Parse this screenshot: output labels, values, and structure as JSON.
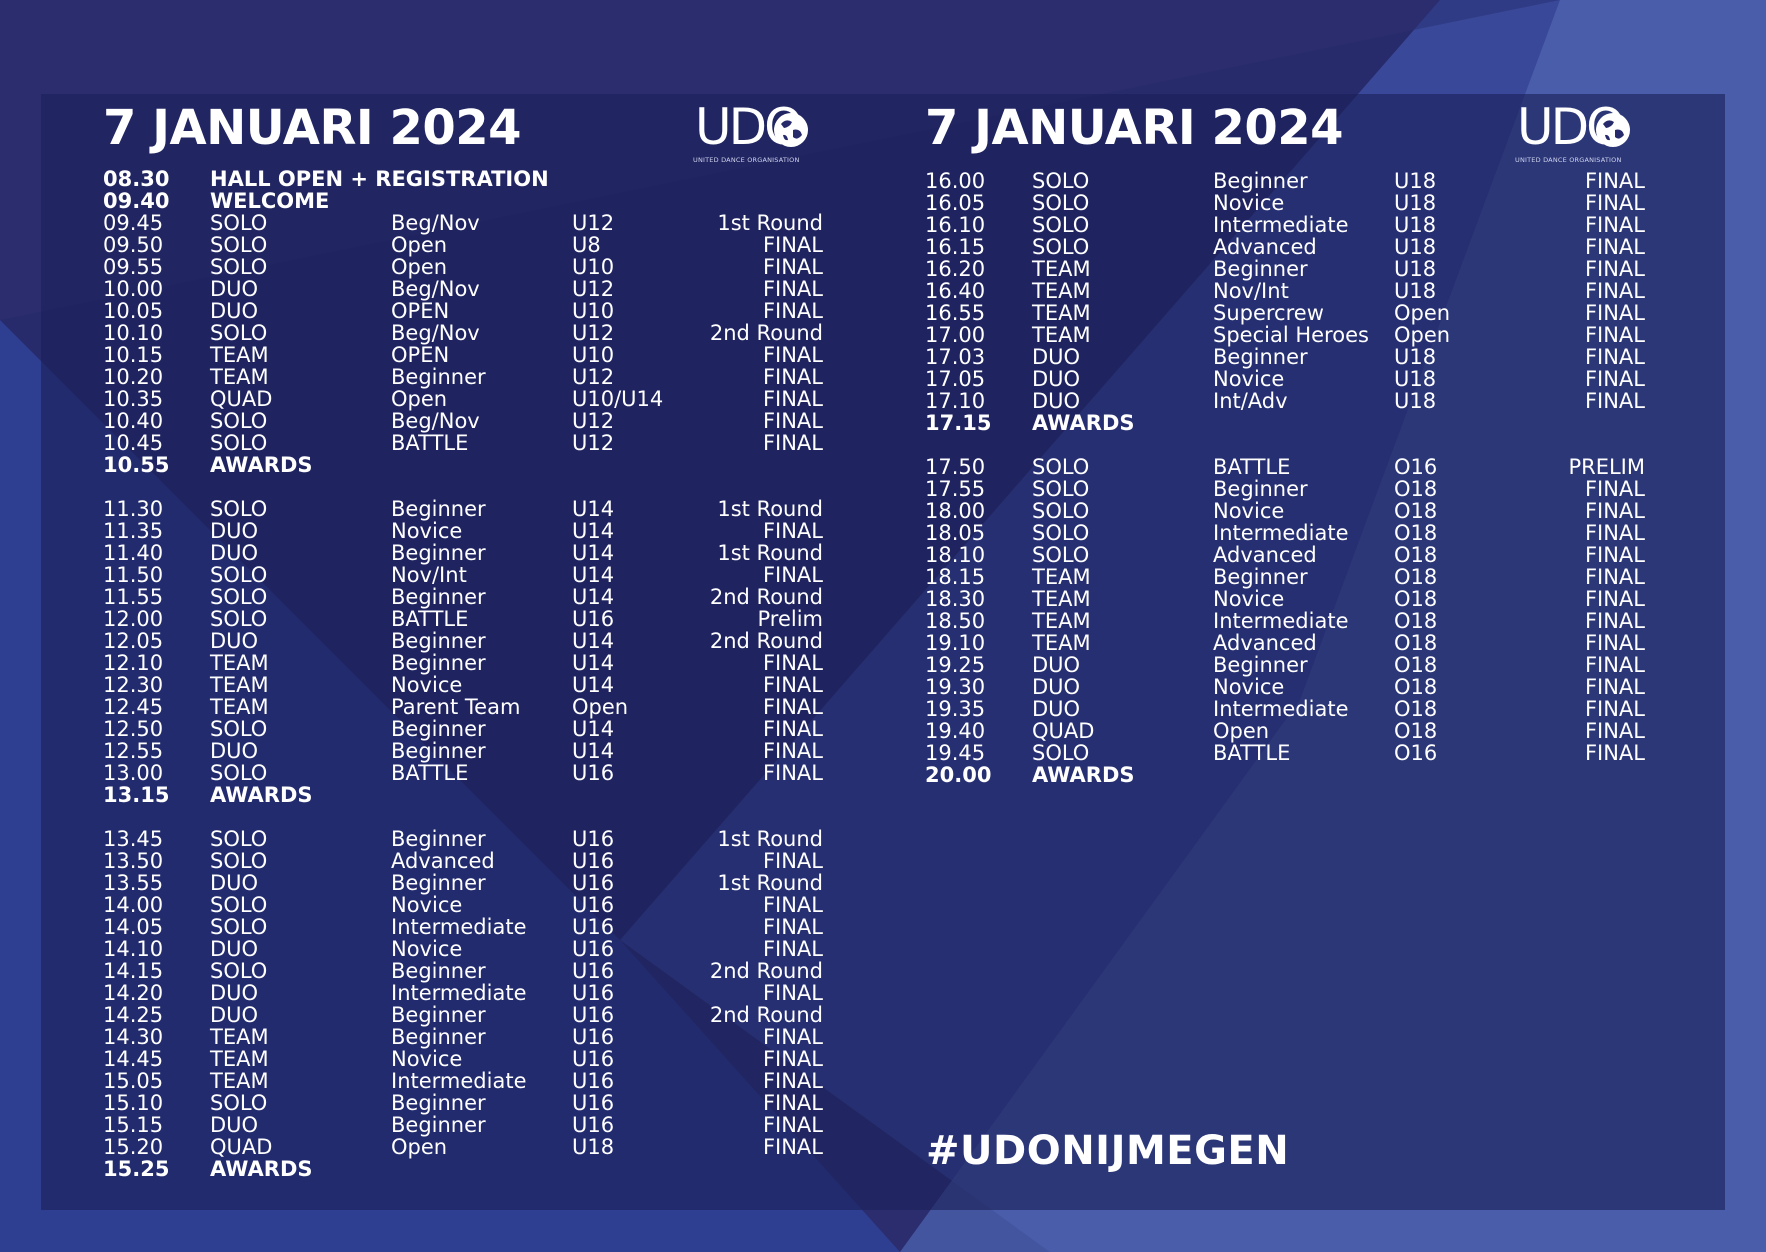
{
  "colors": {
    "background": "#2b2d6e",
    "panel": "#1f2462",
    "accent_light": "#5066b4",
    "text": "#ffffff"
  },
  "logo": {
    "text": "UDO",
    "subtitle": "UNITED DANCE ORGANISATION",
    "icon": "globe-icon"
  },
  "left": {
    "title": "7 JANUARI 2024",
    "rows": [
      {
        "time": "08.30",
        "discipline": "HALL OPEN + REGISTRATION",
        "category": "",
        "age": "",
        "round": "",
        "bold": true
      },
      {
        "time": "09.40",
        "discipline": "WELCOME",
        "category": "",
        "age": "",
        "round": "",
        "bold": true
      },
      {
        "time": "09.45",
        "discipline": "SOLO",
        "category": "Beg/Nov",
        "age": "U12",
        "round": "1st Round"
      },
      {
        "time": "09.50",
        "discipline": "SOLO",
        "category": "Open",
        "age": "U8",
        "round": "FINAL"
      },
      {
        "time": "09.55",
        "discipline": "SOLO",
        "category": "Open",
        "age": "U10",
        "round": "FINAL"
      },
      {
        "time": "10.00",
        "discipline": "DUO",
        "category": "Beg/Nov",
        "age": "U12",
        "round": "FINAL"
      },
      {
        "time": "10.05",
        "discipline": "DUO",
        "category": "OPEN",
        "age": "U10",
        "round": "FINAL"
      },
      {
        "time": "10.10",
        "discipline": "SOLO",
        "category": "Beg/Nov",
        "age": "U12",
        "round": "2nd Round"
      },
      {
        "time": "10.15",
        "discipline": "TEAM",
        "category": "OPEN",
        "age": "U10",
        "round": "FINAL"
      },
      {
        "time": "10.20",
        "discipline": "TEAM",
        "category": "Beginner",
        "age": "U12",
        "round": "FINAL"
      },
      {
        "time": "10.35",
        "discipline": "QUAD",
        "category": "Open",
        "age": "U10/U14",
        "round": "FINAL"
      },
      {
        "time": "10.40",
        "discipline": "SOLO",
        "category": "Beg/Nov",
        "age": "U12",
        "round": "FINAL"
      },
      {
        "time": "10.45",
        "discipline": "SOLO",
        "category": "BATTLE",
        "age": "U12",
        "round": "FINAL"
      },
      {
        "time": "10.55",
        "discipline": "AWARDS",
        "category": "",
        "age": "",
        "round": "",
        "bold": true,
        "gap_after": true
      },
      {
        "time": "11.30",
        "discipline": "SOLO",
        "category": "Beginner",
        "age": "U14",
        "round": "1st Round"
      },
      {
        "time": "11.35",
        "discipline": "DUO",
        "category": "Novice",
        "age": "U14",
        "round": "FINAL"
      },
      {
        "time": "11.40",
        "discipline": "DUO",
        "category": "Beginner",
        "age": "U14",
        "round": "1st Round"
      },
      {
        "time": "11.50",
        "discipline": "SOLO",
        "category": "Nov/Int",
        "age": "U14",
        "round": "FINAL"
      },
      {
        "time": "11.55",
        "discipline": "SOLO",
        "category": "Beginner",
        "age": "U14",
        "round": "2nd Round"
      },
      {
        "time": "12.00",
        "discipline": "SOLO",
        "category": "BATTLE",
        "age": "U16",
        "round": "Prelim"
      },
      {
        "time": "12.05",
        "discipline": "DUO",
        "category": "Beginner",
        "age": "U14",
        "round": "2nd Round"
      },
      {
        "time": "12.10",
        "discipline": "TEAM",
        "category": "Beginner",
        "age": "U14",
        "round": "FINAL"
      },
      {
        "time": "12.30",
        "discipline": "TEAM",
        "category": "Novice",
        "age": "U14",
        "round": "FINAL"
      },
      {
        "time": "12.45",
        "discipline": "TEAM",
        "category": "Parent Team",
        "age": "Open",
        "round": "FINAL"
      },
      {
        "time": "12.50",
        "discipline": "SOLO",
        "category": "Beginner",
        "age": "U14",
        "round": "FINAL"
      },
      {
        "time": "12.55",
        "discipline": "DUO",
        "category": "Beginner",
        "age": "U14",
        "round": "FINAL"
      },
      {
        "time": "13.00",
        "discipline": "SOLO",
        "category": "BATTLE",
        "age": "U16",
        "round": "FINAL"
      },
      {
        "time": "13.15",
        "discipline": "AWARDS",
        "category": "",
        "age": "",
        "round": "",
        "bold": true,
        "gap_after": true
      },
      {
        "time": "13.45",
        "discipline": "SOLO",
        "category": "Beginner",
        "age": "U16",
        "round": "1st Round"
      },
      {
        "time": "13.50",
        "discipline": "SOLO",
        "category": "Advanced",
        "age": "U16",
        "round": "FINAL"
      },
      {
        "time": "13.55",
        "discipline": "DUO",
        "category": "Beginner",
        "age": "U16",
        "round": "1st Round"
      },
      {
        "time": "14.00",
        "discipline": "SOLO",
        "category": "Novice",
        "age": "U16",
        "round": "FINAL"
      },
      {
        "time": "14.05",
        "discipline": "SOLO",
        "category": "Intermediate",
        "age": "U16",
        "round": "FINAL"
      },
      {
        "time": "14.10",
        "discipline": "DUO",
        "category": "Novice",
        "age": "U16",
        "round": "FINAL"
      },
      {
        "time": "14.15",
        "discipline": "SOLO",
        "category": "Beginner",
        "age": "U16",
        "round": "2nd Round"
      },
      {
        "time": "14.20",
        "discipline": "DUO",
        "category": "Intermediate",
        "age": "U16",
        "round": "FINAL"
      },
      {
        "time": "14.25",
        "discipline": "DUO",
        "category": "Beginner",
        "age": "U16",
        "round": "2nd Round"
      },
      {
        "time": "14.30",
        "discipline": "TEAM",
        "category": "Beginner",
        "age": "U16",
        "round": "FINAL"
      },
      {
        "time": "14.45",
        "discipline": "TEAM",
        "category": "Novice",
        "age": "U16",
        "round": "FINAL"
      },
      {
        "time": "15.05",
        "discipline": "TEAM",
        "category": "Intermediate",
        "age": "U16",
        "round": "FINAL"
      },
      {
        "time": "15.10",
        "discipline": "SOLO",
        "category": "Beginner",
        "age": "U16",
        "round": "FINAL"
      },
      {
        "time": "15.15",
        "discipline": "DUO",
        "category": "Beginner",
        "age": "U16",
        "round": "FINAL"
      },
      {
        "time": "15.20",
        "discipline": "QUAD",
        "category": "Open",
        "age": "U18",
        "round": "FINAL"
      },
      {
        "time": "15.25",
        "discipline": "AWARDS",
        "category": "",
        "age": "",
        "round": "",
        "bold": true
      }
    ]
  },
  "right": {
    "title": "7 JANUARI 2024",
    "rows": [
      {
        "time": "16.00",
        "discipline": "SOLO",
        "category": "Beginner",
        "age": "U18",
        "round": "FINAL"
      },
      {
        "time": "16.05",
        "discipline": "SOLO",
        "category": "Novice",
        "age": "U18",
        "round": "FINAL"
      },
      {
        "time": "16.10",
        "discipline": "SOLO",
        "category": "Intermediate",
        "age": "U18",
        "round": "FINAL"
      },
      {
        "time": "16.15",
        "discipline": "SOLO",
        "category": "Advanced",
        "age": "U18",
        "round": "FINAL"
      },
      {
        "time": "16.20",
        "discipline": "TEAM",
        "category": "Beginner",
        "age": "U18",
        "round": "FINAL"
      },
      {
        "time": "16.40",
        "discipline": "TEAM",
        "category": "Nov/Int",
        "age": "U18",
        "round": "FINAL"
      },
      {
        "time": "16.55",
        "discipline": "TEAM",
        "category": "Supercrew",
        "age": "Open",
        "round": "FINAL"
      },
      {
        "time": "17.00",
        "discipline": "TEAM",
        "category": "Special Heroes",
        "age": "Open",
        "round": "FINAL"
      },
      {
        "time": "17.03",
        "discipline": "DUO",
        "category": "Beginner",
        "age": "U18",
        "round": "FINAL"
      },
      {
        "time": "17.05",
        "discipline": "DUO",
        "category": "Novice",
        "age": "U18",
        "round": "FINAL"
      },
      {
        "time": "17.10",
        "discipline": "DUO",
        "category": "Int/Adv",
        "age": "U18",
        "round": "FINAL"
      },
      {
        "time": "17.15",
        "discipline": "AWARDS",
        "category": "",
        "age": "",
        "round": "",
        "bold": true,
        "gap_after": true
      },
      {
        "time": "17.50",
        "discipline": "SOLO",
        "category": "BATTLE",
        "age": "O16",
        "round": "PRELIM"
      },
      {
        "time": "17.55",
        "discipline": "SOLO",
        "category": "Beginner",
        "age": "O18",
        "round": "FINAL"
      },
      {
        "time": "18.00",
        "discipline": "SOLO",
        "category": "Novice",
        "age": "O18",
        "round": "FINAL"
      },
      {
        "time": "18.05",
        "discipline": "SOLO",
        "category": "Intermediate",
        "age": "O18",
        "round": "FINAL"
      },
      {
        "time": "18.10",
        "discipline": "SOLO",
        "category": "Advanced",
        "age": "O18",
        "round": "FINAL"
      },
      {
        "time": "18.15",
        "discipline": "TEAM",
        "category": "Beginner",
        "age": "O18",
        "round": "FINAL"
      },
      {
        "time": "18.30",
        "discipline": "TEAM",
        "category": "Novice",
        "age": "O18",
        "round": "FINAL"
      },
      {
        "time": "18.50",
        "discipline": "TEAM",
        "category": "Intermediate",
        "age": "O18",
        "round": "FINAL"
      },
      {
        "time": "19.10",
        "discipline": "TEAM",
        "category": "Advanced",
        "age": "O18",
        "round": "FINAL"
      },
      {
        "time": "19.25",
        "discipline": "DUO",
        "category": "Beginner",
        "age": "O18",
        "round": "FINAL"
      },
      {
        "time": "19.30",
        "discipline": "DUO",
        "category": "Novice",
        "age": "O18",
        "round": "FINAL"
      },
      {
        "time": "19.35",
        "discipline": "DUO",
        "category": "Intermediate",
        "age": "O18",
        "round": "FINAL"
      },
      {
        "time": "19.40",
        "discipline": "QUAD",
        "category": "Open",
        "age": "O18",
        "round": "FINAL"
      },
      {
        "time": "19.45",
        "discipline": "SOLO",
        "category": "BATTLE",
        "age": "O16",
        "round": "FINAL"
      },
      {
        "time": "20.00",
        "discipline": "AWARDS",
        "category": "",
        "age": "",
        "round": "",
        "bold": true
      }
    ]
  },
  "hashtag": "#UDONIJMEGEN"
}
